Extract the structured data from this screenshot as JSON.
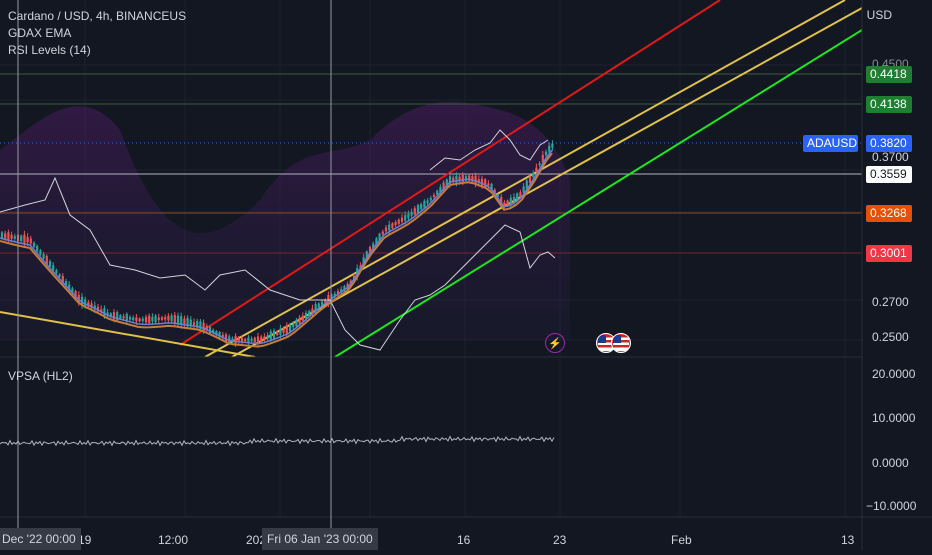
{
  "legend": {
    "title": "Cardano / USD, 4h, BINANCEUS",
    "indicator1": "GDAX EMA",
    "indicator2": "RSI Levels (14)",
    "pane2": "VPSA (HL2)"
  },
  "price_axis": {
    "unit": "USD",
    "ticks": [
      "0.4500",
      "0.3700",
      "0.2700",
      "0.2500"
    ],
    "badges": {
      "b1": "0.4418",
      "b2": "0.4138",
      "symbol": "ADAUSD",
      "current": "0.3820",
      "b3": "0.3559",
      "b4": "0.3268",
      "b5": "0.3001"
    }
  },
  "vpsa_axis": {
    "ticks": [
      "20.0000",
      "10.0000",
      "0.0000",
      "−10.0000"
    ]
  },
  "time_axis": {
    "ticks": [
      "12:00",
      "16",
      "23",
      "Feb",
      "13"
    ],
    "partial1": "19",
    "partial2": "2023",
    "partial3": "0",
    "crosshair_left": "Dec '22   00:00",
    "crosshair_right": "Fri 06 Jan '23   00:00"
  },
  "colors": {
    "background": "#131722",
    "up": "#26a69a",
    "down": "#ef5350",
    "green_badge": "#1e7f31",
    "blue_badge": "#2962ff",
    "orange_badge": "#e65100",
    "red_badge": "#f23645",
    "red_line": "#e01919",
    "yellow_line": "#e0c24a",
    "green_line": "#1ee61e"
  },
  "icons": [
    "lightning-icon",
    "us-flag-icon",
    "us-flag-icon"
  ]
}
